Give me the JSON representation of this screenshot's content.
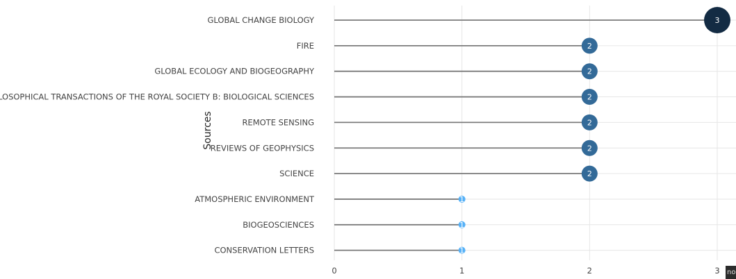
{
  "chart_data": {
    "type": "lollipop",
    "ylabel": "Sources",
    "xlabel": "",
    "xlim": [
      0,
      3
    ],
    "x_ticks": [
      0,
      1,
      2,
      3
    ],
    "x_tick_labels": [
      "0",
      "1",
      "2",
      "3"
    ],
    "grid": true,
    "categories": [
      "GLOBAL CHANGE BIOLOGY",
      "FIRE",
      "GLOBAL ECOLOGY AND BIOGEOGRAPHY",
      "PHILOSOPHICAL TRANSACTIONS OF THE ROYAL SOCIETY B: BIOLOGICAL SCIENCES",
      "REMOTE SENSING",
      "REVIEWS OF GEOPHYSICS",
      "SCIENCE",
      "ATMOSPHERIC ENVIRONMENT",
      "BIOGEOSCIENCES",
      "CONSERVATION LETTERS"
    ],
    "values": [
      3,
      2,
      2,
      2,
      2,
      2,
      2,
      1,
      1,
      1
    ],
    "value_labels": [
      "3",
      "2",
      "2",
      "2",
      "2",
      "2",
      "2",
      "1",
      "1",
      "1"
    ],
    "colors": {
      "3": "#132b43",
      "2": "#336a98",
      "1": "#56b1f7"
    }
  },
  "corner_badge": "no"
}
